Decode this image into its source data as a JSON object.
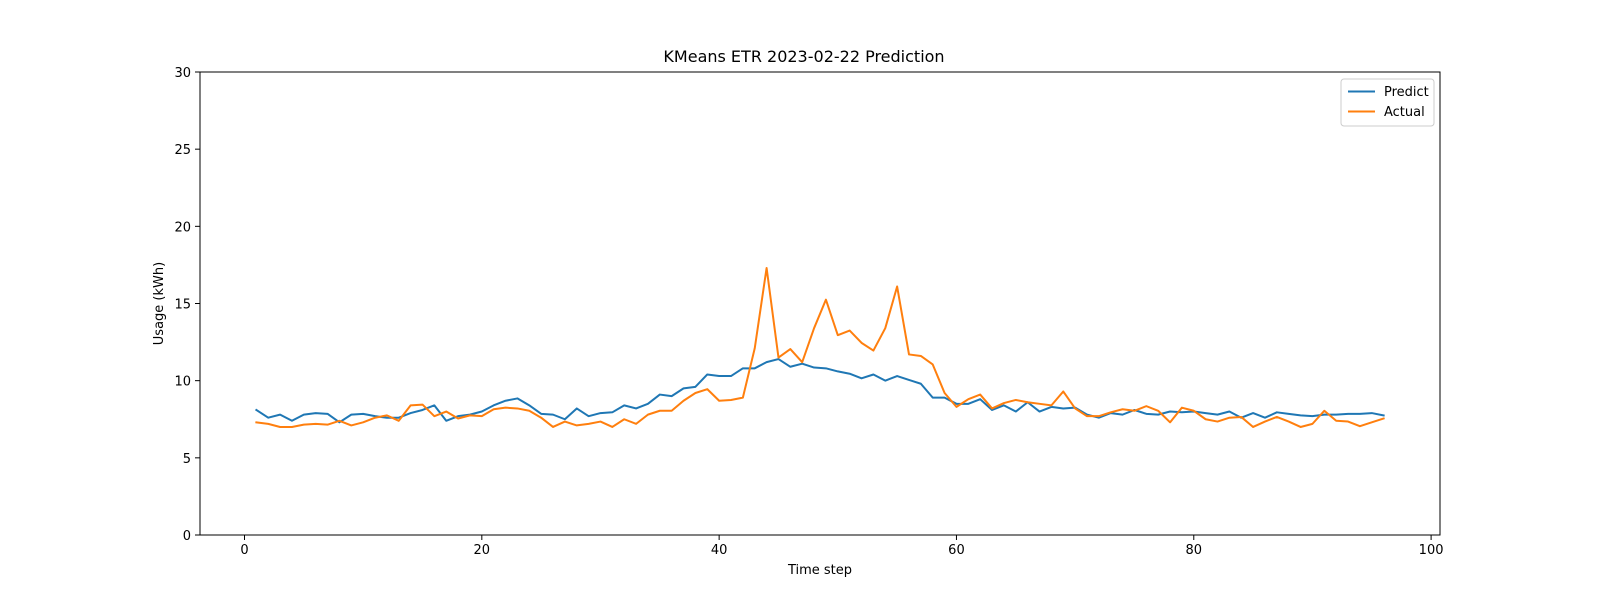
{
  "chart_data": {
    "type": "line",
    "title": "KMeans ETR 2023-02-22 Prediction",
    "xlabel": "Time step",
    "ylabel": "Usage (kWh)",
    "xlim": [
      -3.75,
      100.75
    ],
    "ylim": [
      0,
      30
    ],
    "xticks": [
      0,
      20,
      40,
      60,
      80,
      100
    ],
    "yticks": [
      0,
      5,
      10,
      15,
      20,
      25,
      30
    ],
    "grid": false,
    "legend_position": "top-right",
    "x": [
      1,
      2,
      3,
      4,
      5,
      6,
      7,
      8,
      9,
      10,
      11,
      12,
      13,
      14,
      15,
      16,
      17,
      18,
      19,
      20,
      21,
      22,
      23,
      24,
      25,
      26,
      27,
      28,
      29,
      30,
      31,
      32,
      33,
      34,
      35,
      36,
      37,
      38,
      39,
      40,
      41,
      42,
      43,
      44,
      45,
      46,
      47,
      48,
      49,
      50,
      51,
      52,
      53,
      54,
      55,
      56,
      57,
      58,
      59,
      60,
      61,
      62,
      63,
      64,
      65,
      66,
      67,
      68,
      69,
      70,
      71,
      72,
      73,
      74,
      75,
      76,
      77,
      78,
      79,
      80,
      81,
      82,
      83,
      84,
      85,
      86,
      87,
      88,
      89,
      90,
      91,
      92,
      93,
      94,
      95,
      96
    ],
    "series": [
      {
        "name": "Predict",
        "color": "#1f77b4",
        "values": [
          8.1,
          7.6,
          7.8,
          7.4,
          7.8,
          7.9,
          7.85,
          7.3,
          7.8,
          7.85,
          7.7,
          7.6,
          7.6,
          7.9,
          8.1,
          8.4,
          7.4,
          7.7,
          7.8,
          8.0,
          8.4,
          8.7,
          8.85,
          8.4,
          7.85,
          7.8,
          7.5,
          8.2,
          7.7,
          7.9,
          7.95,
          8.4,
          8.2,
          8.5,
          9.1,
          9.0,
          9.5,
          9.6,
          10.4,
          10.3,
          10.3,
          10.8,
          10.8,
          11.2,
          11.4,
          10.9,
          11.1,
          10.85,
          10.8,
          10.6,
          10.45,
          10.15,
          10.4,
          10.0,
          10.3,
          10.05,
          9.8,
          8.9,
          8.9,
          8.5,
          8.5,
          8.8,
          8.1,
          8.4,
          8.0,
          8.6,
          8.0,
          8.3,
          8.2,
          8.25,
          7.8,
          7.6,
          7.9,
          7.8,
          8.1,
          7.85,
          7.8,
          8.0,
          7.95,
          8.0,
          7.9,
          7.8,
          8.0,
          7.6,
          7.9,
          7.6,
          7.95,
          7.85,
          7.75,
          7.7,
          7.8,
          7.8,
          7.85,
          7.85,
          7.9,
          7.75
        ]
      },
      {
        "name": "Actual",
        "color": "#ff7f0e",
        "values": [
          7.3,
          7.2,
          7.0,
          7.0,
          7.15,
          7.2,
          7.15,
          7.4,
          7.1,
          7.3,
          7.6,
          7.75,
          7.4,
          8.4,
          8.45,
          7.7,
          8.0,
          7.55,
          7.75,
          7.7,
          8.15,
          8.25,
          8.2,
          8.05,
          7.6,
          7.0,
          7.35,
          7.1,
          7.2,
          7.35,
          7.0,
          7.5,
          7.2,
          7.8,
          8.05,
          8.05,
          8.7,
          9.2,
          9.45,
          8.7,
          8.75,
          8.9,
          12.1,
          17.3,
          11.5,
          12.05,
          11.2,
          13.4,
          15.25,
          12.95,
          13.25,
          12.45,
          11.95,
          13.4,
          16.1,
          11.7,
          11.6,
          11.05,
          9.2,
          8.3,
          8.8,
          9.1,
          8.2,
          8.55,
          8.75,
          8.6,
          8.5,
          8.4,
          9.3,
          8.2,
          7.7,
          7.7,
          7.95,
          8.15,
          8.05,
          8.35,
          8.05,
          7.3,
          8.25,
          8.05,
          7.5,
          7.35,
          7.6,
          7.65,
          7.0,
          7.35,
          7.65,
          7.35,
          7.0,
          7.2,
          8.05,
          7.4,
          7.35,
          7.05,
          7.3,
          7.55
        ]
      }
    ]
  }
}
